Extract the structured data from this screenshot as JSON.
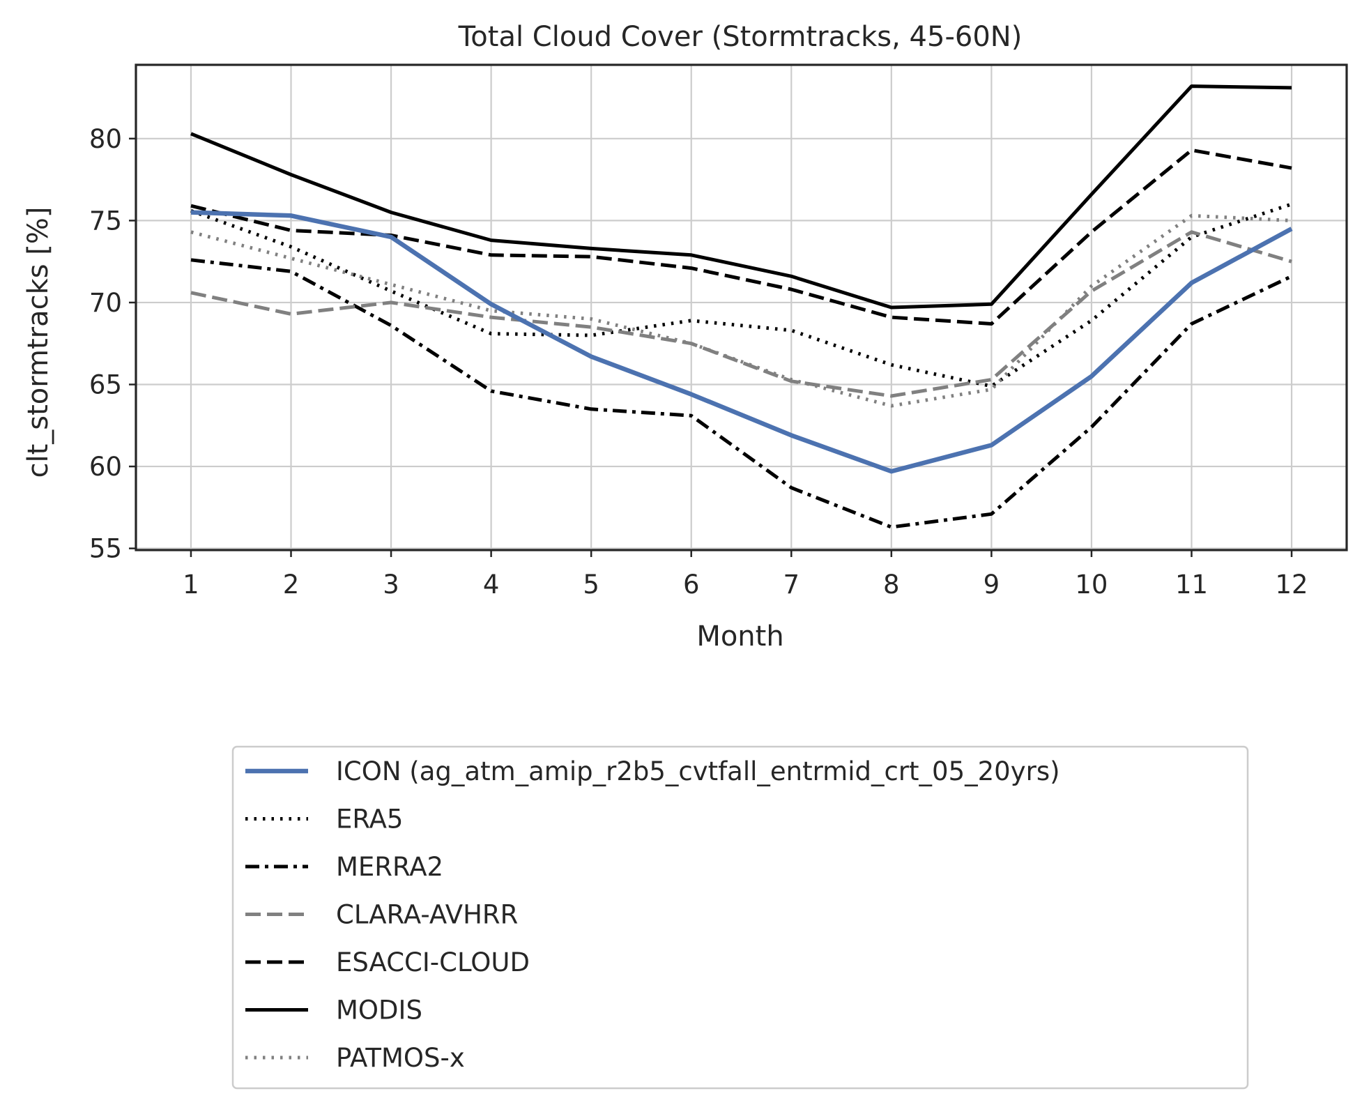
{
  "chart_data": {
    "type": "line",
    "title": "Total Cloud Cover (Stormtracks, 45-60N)",
    "xlabel": "Month",
    "ylabel": "clt_stormtracks [%]",
    "x": [
      1,
      2,
      3,
      4,
      5,
      6,
      7,
      8,
      9,
      10,
      11,
      12
    ],
    "xlim": [
      0.45,
      12.55
    ],
    "ylim": [
      54.9,
      84.5
    ],
    "xticks": [
      "1",
      "2",
      "3",
      "4",
      "5",
      "6",
      "7",
      "8",
      "9",
      "10",
      "11",
      "12"
    ],
    "yticks": [
      "55",
      "60",
      "65",
      "70",
      "75",
      "80"
    ],
    "grid": true,
    "legend": "below",
    "series": [
      {
        "name": "ICON (ag_atm_amip_r2b5_cvtfall_entrmid_crt_05_20yrs)",
        "color": "#4c72b0",
        "style": "solid",
        "values": [
          75.5,
          75.3,
          74.0,
          69.9,
          66.7,
          64.4,
          61.9,
          59.7,
          61.3,
          65.5,
          71.2,
          74.5
        ]
      },
      {
        "name": "ERA5",
        "color": "#000000",
        "style": "dotted",
        "values": [
          75.6,
          73.4,
          70.7,
          68.1,
          68.0,
          68.9,
          68.3,
          66.2,
          64.9,
          68.9,
          74.0,
          76.0
        ]
      },
      {
        "name": "MERRA2",
        "color": "#000000",
        "style": "dashdot",
        "values": [
          72.6,
          71.9,
          68.6,
          64.6,
          63.5,
          63.1,
          58.7,
          56.3,
          57.1,
          62.4,
          68.7,
          71.6
        ]
      },
      {
        "name": "CLARA-AVHRR",
        "color": "#808080",
        "style": "dashed",
        "values": [
          70.6,
          69.3,
          70.0,
          69.1,
          68.5,
          67.5,
          65.2,
          64.3,
          65.3,
          70.7,
          74.3,
          72.5
        ]
      },
      {
        "name": "ESACCI-CLOUD",
        "color": "#000000",
        "style": "dashed",
        "values": [
          75.9,
          74.4,
          74.1,
          72.9,
          72.8,
          72.1,
          70.8,
          69.1,
          68.7,
          74.3,
          79.3,
          78.2
        ]
      },
      {
        "name": "MODIS",
        "color": "#000000",
        "style": "solid",
        "values": [
          80.3,
          77.8,
          75.5,
          73.8,
          73.3,
          72.9,
          71.6,
          69.7,
          69.9,
          76.6,
          83.2,
          83.1
        ]
      },
      {
        "name": "PATMOS-x",
        "color": "#808080",
        "style": "dotted",
        "values": [
          74.3,
          72.7,
          71.1,
          69.5,
          69.0,
          67.5,
          65.3,
          63.7,
          64.7,
          71.0,
          75.3,
          75.0
        ]
      }
    ]
  }
}
